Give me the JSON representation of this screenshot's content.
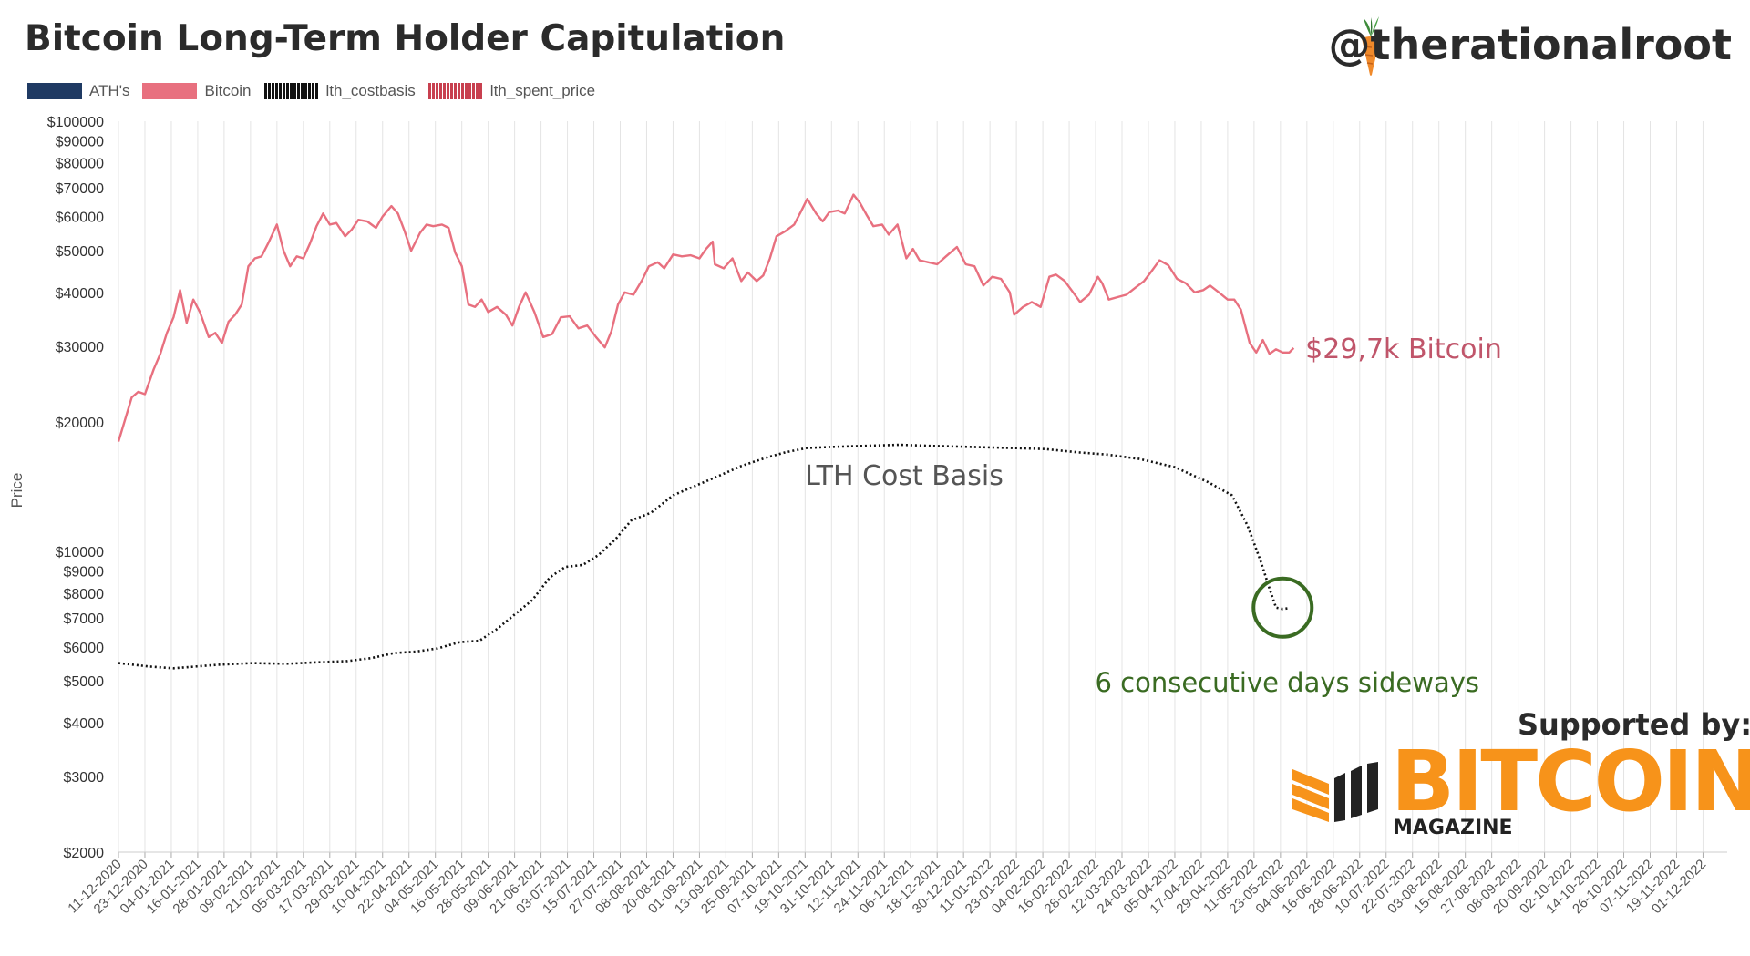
{
  "header": {
    "title": "Bitcoin Long-Term Holder Capitulation",
    "handle": "@therationalroot"
  },
  "branding": {
    "supported_label": "Supported by:",
    "logo_word": "BITCOIN",
    "logo_sub": "MAGAZINE",
    "logo_color": "#f7931a"
  },
  "chart_data": {
    "type": "line",
    "title": "Bitcoin Long-Term Holder Capitulation",
    "xlabel": "",
    "ylabel": "Price",
    "y_scale": "log",
    "ylim": [
      2000,
      100000
    ],
    "xlim": [
      "2020-12-11",
      "2022-12-12"
    ],
    "grid": {
      "vertical": true,
      "horizontal": false
    },
    "legend_position": "top-left",
    "legend": [
      {
        "name": "ATH's",
        "color": "#1f3a63",
        "style": "solid"
      },
      {
        "name": "Bitcoin",
        "color": "#e8707f",
        "style": "solid"
      },
      {
        "name": "lth_costbasis",
        "color": "#111111",
        "style": "dotted"
      },
      {
        "name": "lth_spent_price",
        "color": "#c8404f",
        "style": "dotted"
      }
    ],
    "y_tick_labels": [
      {
        "v": 100000,
        "label": "$100000"
      },
      {
        "v": 90000,
        "label": "$90000"
      },
      {
        "v": 80000,
        "label": "$80000"
      },
      {
        "v": 70000,
        "label": "$70000"
      },
      {
        "v": 60000,
        "label": "$60000"
      },
      {
        "v": 50000,
        "label": "$50000"
      },
      {
        "v": 40000,
        "label": "$40000"
      },
      {
        "v": 30000,
        "label": "$30000"
      },
      {
        "v": 20000,
        "label": "$20000"
      },
      {
        "v": 10000,
        "label": "$10000"
      },
      {
        "v": 9000,
        "label": "$9000"
      },
      {
        "v": 8000,
        "label": "$8000"
      },
      {
        "v": 7000,
        "label": "$7000"
      },
      {
        "v": 6000,
        "label": "$6000"
      },
      {
        "v": 5000,
        "label": "$5000"
      },
      {
        "v": 4000,
        "label": "$4000"
      },
      {
        "v": 3000,
        "label": "$3000"
      },
      {
        "v": 2000,
        "label": "$2000"
      }
    ],
    "x_tick_labels": [
      "11-12-2020",
      "23-12-2020",
      "04-01-2021",
      "16-01-2021",
      "28-01-2021",
      "09-02-2021",
      "21-02-2021",
      "05-03-2021",
      "17-03-2021",
      "29-03-2021",
      "10-04-2021",
      "22-04-2021",
      "04-05-2021",
      "16-05-2021",
      "28-05-2021",
      "09-06-2021",
      "21-06-2021",
      "03-07-2021",
      "15-07-2021",
      "27-07-2021",
      "08-08-2021",
      "20-08-2021",
      "01-09-2021",
      "13-09-2021",
      "25-09-2021",
      "07-10-2021",
      "19-10-2021",
      "31-10-2021",
      "12-11-2021",
      "24-11-2021",
      "06-12-2021",
      "18-12-2021",
      "30-12-2021",
      "11-01-2022",
      "23-01-2022",
      "04-02-2022",
      "16-02-2022",
      "28-02-2022",
      "12-03-2022",
      "24-03-2022",
      "05-04-2022",
      "17-04-2022",
      "29-04-2022",
      "11-05-2022",
      "23-05-2022",
      "04-06-2022",
      "16-06-2022",
      "28-06-2022",
      "10-07-2022",
      "22-07-2022",
      "03-08-2022",
      "15-08-2022",
      "27-08-2022",
      "08-09-2022",
      "20-09-2022",
      "02-10-2022",
      "14-10-2022",
      "26-10-2022",
      "07-11-2022",
      "19-11-2022",
      "01-12-2022"
    ],
    "series": [
      {
        "name": "Bitcoin",
        "color": "#e8707f",
        "points": [
          [
            "2020-12-11",
            18000
          ],
          [
            "2020-12-17",
            22800
          ],
          [
            "2020-12-20",
            23500
          ],
          [
            "2020-12-23",
            23200
          ],
          [
            "2020-12-27",
            26500
          ],
          [
            "2020-12-30",
            28800
          ],
          [
            "2021-01-02",
            32200
          ],
          [
            "2021-01-05",
            35000
          ],
          [
            "2021-01-08",
            40500
          ],
          [
            "2021-01-11",
            34000
          ],
          [
            "2021-01-14",
            38500
          ],
          [
            "2021-01-17",
            36000
          ],
          [
            "2021-01-21",
            31500
          ],
          [
            "2021-01-24",
            32200
          ],
          [
            "2021-01-27",
            30500
          ],
          [
            "2021-01-30",
            34200
          ],
          [
            "2021-02-02",
            35500
          ],
          [
            "2021-02-05",
            37500
          ],
          [
            "2021-02-08",
            46000
          ],
          [
            "2021-02-11",
            48000
          ],
          [
            "2021-02-14",
            48500
          ],
          [
            "2021-02-17",
            52000
          ],
          [
            "2021-02-21",
            57500
          ],
          [
            "2021-02-24",
            50000
          ],
          [
            "2021-02-27",
            46000
          ],
          [
            "2021-03-02",
            48500
          ],
          [
            "2021-03-05",
            48000
          ],
          [
            "2021-03-08",
            52000
          ],
          [
            "2021-03-11",
            57000
          ],
          [
            "2021-03-14",
            61000
          ],
          [
            "2021-03-17",
            57500
          ],
          [
            "2021-03-20",
            58000
          ],
          [
            "2021-03-24",
            54000
          ],
          [
            "2021-03-27",
            56000
          ],
          [
            "2021-03-30",
            59000
          ],
          [
            "2021-04-03",
            58500
          ],
          [
            "2021-04-07",
            56500
          ],
          [
            "2021-04-10",
            60000
          ],
          [
            "2021-04-14",
            63500
          ],
          [
            "2021-04-17",
            61000
          ],
          [
            "2021-04-20",
            55500
          ],
          [
            "2021-04-23",
            50000
          ],
          [
            "2021-04-27",
            55000
          ],
          [
            "2021-04-30",
            57500
          ],
          [
            "2021-05-03",
            57000
          ],
          [
            "2021-05-07",
            57500
          ],
          [
            "2021-05-10",
            56500
          ],
          [
            "2021-05-13",
            49500
          ],
          [
            "2021-05-16",
            46000
          ],
          [
            "2021-05-19",
            37500
          ],
          [
            "2021-05-22",
            37000
          ],
          [
            "2021-05-25",
            38500
          ],
          [
            "2021-05-28",
            36000
          ],
          [
            "2021-06-01",
            37000
          ],
          [
            "2021-06-05",
            35500
          ],
          [
            "2021-06-08",
            33500
          ],
          [
            "2021-06-11",
            37000
          ],
          [
            "2021-06-14",
            40000
          ],
          [
            "2021-06-18",
            36000
          ],
          [
            "2021-06-22",
            31500
          ],
          [
            "2021-06-26",
            32000
          ],
          [
            "2021-06-30",
            35000
          ],
          [
            "2021-07-04",
            35200
          ],
          [
            "2021-07-08",
            33000
          ],
          [
            "2021-07-12",
            33500
          ],
          [
            "2021-07-16",
            31500
          ],
          [
            "2021-07-20",
            29800
          ],
          [
            "2021-07-23",
            32500
          ],
          [
            "2021-07-26",
            37500
          ],
          [
            "2021-07-29",
            40000
          ],
          [
            "2021-08-02",
            39500
          ],
          [
            "2021-08-06",
            42800
          ],
          [
            "2021-08-09",
            46000
          ],
          [
            "2021-08-13",
            47000
          ],
          [
            "2021-08-16",
            45500
          ],
          [
            "2021-08-20",
            49000
          ],
          [
            "2021-08-24",
            48500
          ],
          [
            "2021-08-28",
            48800
          ],
          [
            "2021-09-01",
            48000
          ],
          [
            "2021-09-04",
            50500
          ],
          [
            "2021-09-07",
            52500
          ],
          [
            "2021-09-08",
            46500
          ],
          [
            "2021-09-12",
            45500
          ],
          [
            "2021-09-16",
            48000
          ],
          [
            "2021-09-20",
            42500
          ],
          [
            "2021-09-23",
            44500
          ],
          [
            "2021-09-27",
            42500
          ],
          [
            "2021-09-30",
            43800
          ],
          [
            "2021-10-03",
            48000
          ],
          [
            "2021-10-06",
            54000
          ],
          [
            "2021-10-10",
            55500
          ],
          [
            "2021-10-14",
            57500
          ],
          [
            "2021-10-17",
            61500
          ],
          [
            "2021-10-20",
            66000
          ],
          [
            "2021-10-24",
            61000
          ],
          [
            "2021-10-27",
            58500
          ],
          [
            "2021-10-30",
            61500
          ],
          [
            "2021-11-03",
            62000
          ],
          [
            "2021-11-06",
            61000
          ],
          [
            "2021-11-10",
            67500
          ],
          [
            "2021-11-13",
            64500
          ],
          [
            "2021-11-16",
            60500
          ],
          [
            "2021-11-19",
            57000
          ],
          [
            "2021-11-23",
            57500
          ],
          [
            "2021-11-26",
            54500
          ],
          [
            "2021-11-30",
            57500
          ],
          [
            "2021-12-04",
            48000
          ],
          [
            "2021-12-07",
            50500
          ],
          [
            "2021-12-10",
            47500
          ],
          [
            "2021-12-14",
            47000
          ],
          [
            "2021-12-18",
            46500
          ],
          [
            "2021-12-22",
            48500
          ],
          [
            "2021-12-27",
            51000
          ],
          [
            "2021-12-31",
            46500
          ],
          [
            "2022-01-04",
            46000
          ],
          [
            "2022-01-08",
            41500
          ],
          [
            "2022-01-12",
            43500
          ],
          [
            "2022-01-16",
            43000
          ],
          [
            "2022-01-20",
            40000
          ],
          [
            "2022-01-22",
            35500
          ],
          [
            "2022-01-26",
            37000
          ],
          [
            "2022-01-30",
            38000
          ],
          [
            "2022-02-03",
            37000
          ],
          [
            "2022-02-07",
            43500
          ],
          [
            "2022-02-10",
            44000
          ],
          [
            "2022-02-14",
            42500
          ],
          [
            "2022-02-17",
            40500
          ],
          [
            "2022-02-21",
            38000
          ],
          [
            "2022-02-25",
            39500
          ],
          [
            "2022-03-01",
            43500
          ],
          [
            "2022-03-03",
            42000
          ],
          [
            "2022-03-06",
            38500
          ],
          [
            "2022-03-10",
            39000
          ],
          [
            "2022-03-14",
            39500
          ],
          [
            "2022-03-18",
            41000
          ],
          [
            "2022-03-22",
            42500
          ],
          [
            "2022-03-25",
            44500
          ],
          [
            "2022-03-29",
            47500
          ],
          [
            "2022-04-02",
            46300
          ],
          [
            "2022-04-06",
            43000
          ],
          [
            "2022-04-10",
            42000
          ],
          [
            "2022-04-14",
            40000
          ],
          [
            "2022-04-18",
            40500
          ],
          [
            "2022-04-21",
            41500
          ],
          [
            "2022-04-25",
            40000
          ],
          [
            "2022-04-29",
            38500
          ],
          [
            "2022-05-02",
            38500
          ],
          [
            "2022-05-05",
            36500
          ],
          [
            "2022-05-09",
            30500
          ],
          [
            "2022-05-12",
            29000
          ],
          [
            "2022-05-15",
            31000
          ],
          [
            "2022-05-18",
            28800
          ],
          [
            "2022-05-21",
            29500
          ],
          [
            "2022-05-24",
            29000
          ],
          [
            "2022-05-27",
            29000
          ],
          [
            "2022-05-29",
            29700
          ]
        ]
      },
      {
        "name": "lth_costbasis",
        "color": "#111111",
        "points": [
          [
            "2020-12-11",
            5500
          ],
          [
            "2020-12-25",
            5400
          ],
          [
            "2021-01-05",
            5350
          ],
          [
            "2021-01-15",
            5400
          ],
          [
            "2021-01-25",
            5450
          ],
          [
            "2021-02-10",
            5500
          ],
          [
            "2021-02-25",
            5480
          ],
          [
            "2021-03-10",
            5520
          ],
          [
            "2021-03-25",
            5560
          ],
          [
            "2021-04-05",
            5650
          ],
          [
            "2021-04-15",
            5800
          ],
          [
            "2021-04-25",
            5850
          ],
          [
            "2021-05-05",
            5950
          ],
          [
            "2021-05-15",
            6150
          ],
          [
            "2021-05-24",
            6200
          ],
          [
            "2021-06-01",
            6600
          ],
          [
            "2021-06-10",
            7200
          ],
          [
            "2021-06-17",
            7700
          ],
          [
            "2021-06-25",
            8700
          ],
          [
            "2021-07-02",
            9200
          ],
          [
            "2021-07-10",
            9300
          ],
          [
            "2021-07-17",
            9800
          ],
          [
            "2021-07-25",
            10700
          ],
          [
            "2021-08-01",
            11800
          ],
          [
            "2021-08-10",
            12300
          ],
          [
            "2021-08-20",
            13500
          ],
          [
            "2021-08-30",
            14200
          ],
          [
            "2021-09-10",
            15000
          ],
          [
            "2021-09-20",
            15800
          ],
          [
            "2021-10-01",
            16500
          ],
          [
            "2021-10-10",
            17000
          ],
          [
            "2021-10-20",
            17400
          ],
          [
            "2021-11-01",
            17500
          ],
          [
            "2021-11-15",
            17600
          ],
          [
            "2021-12-01",
            17700
          ],
          [
            "2021-12-15",
            17600
          ],
          [
            "2022-01-01",
            17500
          ],
          [
            "2022-01-20",
            17400
          ],
          [
            "2022-02-05",
            17300
          ],
          [
            "2022-02-20",
            17000
          ],
          [
            "2022-03-05",
            16800
          ],
          [
            "2022-03-20",
            16400
          ],
          [
            "2022-04-05",
            15700
          ],
          [
            "2022-04-20",
            14500
          ],
          [
            "2022-05-01",
            13500
          ],
          [
            "2022-05-08",
            11500
          ],
          [
            "2022-05-14",
            9500
          ],
          [
            "2022-05-18",
            8200
          ],
          [
            "2022-05-21",
            7400
          ],
          [
            "2022-05-24",
            7350
          ],
          [
            "2022-05-27",
            7380
          ]
        ]
      }
    ],
    "annotations": [
      {
        "text": "$29,7k  Bitcoin",
        "color": "#c0556a",
        "at": [
          "2022-05-31",
          29700
        ]
      },
      {
        "text": "LTH Cost Basis",
        "color": "#555555",
        "at": [
          "2021-12-03",
          15000
        ]
      },
      {
        "text": "6 consecutive days sideways",
        "color": "#3a6b22",
        "at": [
          "2022-05-24",
          4950
        ]
      }
    ],
    "circle_marker": {
      "color": "#3a6b22",
      "at": [
        "2022-05-24",
        7400
      ]
    }
  }
}
